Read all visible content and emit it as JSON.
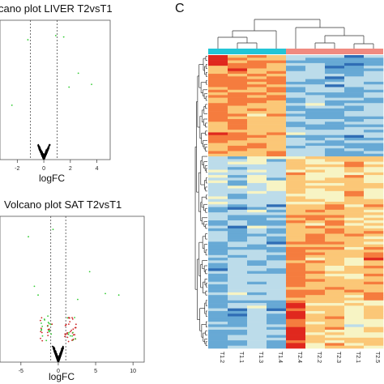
{
  "panel_labels": {
    "c": "C"
  },
  "chart_data": [
    {
      "type": "scatter",
      "title": "cano plot LIVER T2vsT1",
      "xlabel": "logFC",
      "ylabel": "",
      "x_ticks": [
        "-2",
        "0",
        "2",
        "4"
      ],
      "xlim": [
        -3.3,
        5.0
      ],
      "ylim": [
        0,
        10
      ],
      "cutoff_lines": [
        -1,
        1
      ],
      "colors": {
        "ns": "#000000",
        "sig": "#33cc33",
        "mid": "#cc2222",
        "frame": "#555555"
      },
      "points_significant": [
        [
          -1.2,
          8.6
        ],
        [
          0.9,
          8.9
        ],
        [
          1.5,
          8.8
        ],
        [
          2.6,
          6.2
        ],
        [
          1.9,
          5.2
        ],
        [
          3.6,
          5.4
        ],
        [
          -2.4,
          3.9
        ]
      ]
    },
    {
      "type": "scatter",
      "title": "Volcano plot SAT T2vsT1",
      "xlabel": "logFC",
      "ylabel": "",
      "x_ticks": [
        "-5",
        "0",
        "5",
        "10"
      ],
      "xlim": [
        -7.8,
        11.5
      ],
      "ylim": [
        0,
        10
      ],
      "cutoff_lines": [
        -1,
        1
      ],
      "colors": {
        "ns": "#000000",
        "sig": "#33cc33",
        "mid": "#cc2222",
        "frame": "#555555"
      },
      "points_significant": [
        [
          -4.0,
          8.6
        ],
        [
          4.2,
          6.2
        ],
        [
          6.3,
          4.7
        ],
        [
          8.1,
          4.6
        ],
        [
          -3.2,
          5.2
        ],
        [
          -2.7,
          4.6
        ],
        [
          2.6,
          4.3
        ],
        [
          -0.7,
          9.1
        ]
      ]
    },
    {
      "type": "heatmap",
      "title": "",
      "columns": [
        "T1.2",
        "T1.1",
        "T1.3",
        "T1.4",
        "T2.4",
        "T2.2",
        "T2.3",
        "T2.1",
        "T2.5"
      ],
      "groups": [
        {
          "columns": [
            0,
            1,
            2,
            3
          ],
          "color": "#22c5d6"
        },
        {
          "columns": [
            4,
            5,
            6,
            7,
            8
          ],
          "color": "#f08a80"
        }
      ],
      "color_scale": [
        "#2f6db5",
        "#67a9d5",
        "#bcdcea",
        "#f7f4c4",
        "#fbc777",
        "#f57c3e",
        "#e0281e"
      ],
      "n_rows": 110,
      "value_range": [
        -2,
        2
      ]
    }
  ]
}
